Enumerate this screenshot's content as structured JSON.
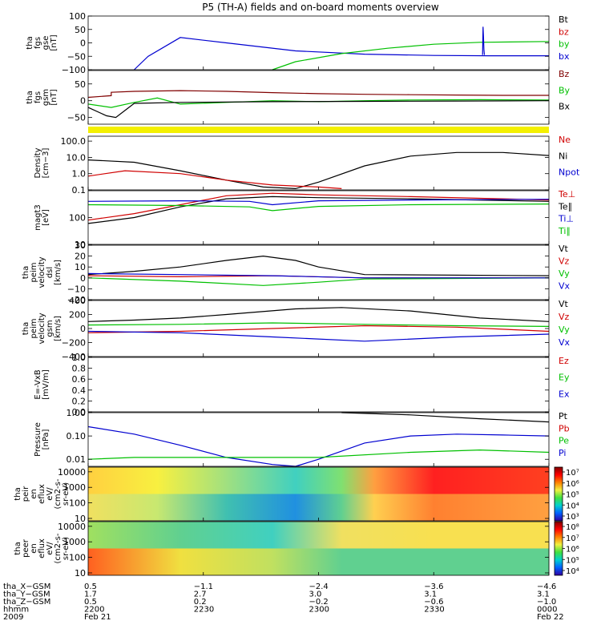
{
  "title": "P5 (TH-A) fields and on-board moments overview",
  "colors": {
    "black": "#000000",
    "red": "#d00000",
    "green": "#00c000",
    "blue": "#0000d0",
    "darkred": "#800000",
    "yellow": "#f4f000"
  },
  "chart_data": [
    {
      "type": "line",
      "id": "fgs_gse",
      "ylabel": [
        "tha",
        "fgs",
        "gse",
        "[nT]"
      ],
      "ylim": [
        -100,
        100
      ],
      "yticks": [
        "100",
        "50",
        "0",
        "−50",
        "−100"
      ],
      "yvalues": [
        100,
        50,
        0,
        -50,
        -100
      ],
      "legend": [
        {
          "label": "Bt",
          "color": "#000000"
        },
        {
          "label": "bz",
          "color": "#d00000"
        },
        {
          "label": "by",
          "color": "#00c000"
        },
        {
          "label": "bx",
          "color": "#0000d0"
        }
      ],
      "series": [
        {
          "name": "bx",
          "color": "#0000d0",
          "x": [
            0.1,
            0.13,
            0.2,
            0.3,
            0.45,
            0.6,
            0.75,
            0.87,
            0.9,
            1.0
          ],
          "y": [
            -100,
            -50,
            20,
            0,
            -30,
            -42,
            -47,
            -48,
            -48,
            -48
          ]
        },
        {
          "name": "by",
          "color": "#00c000",
          "x": [
            0.4,
            0.45,
            0.55,
            0.65,
            0.75,
            0.85,
            1.0
          ],
          "y": [
            -100,
            -70,
            -40,
            -20,
            -5,
            2,
            5
          ]
        },
        {
          "name": "spike",
          "color": "#0000d0",
          "x": [
            0.856,
            0.857,
            0.858,
            0.859,
            0.86
          ],
          "y": [
            -45,
            60,
            25,
            -25,
            -45
          ]
        }
      ]
    },
    {
      "type": "line",
      "id": "fgs_gsm",
      "ylabel": [
        "tha",
        "fgs",
        "gsm",
        "[nT]"
      ],
      "ylim": [
        -70,
        90
      ],
      "yticks": [
        "50",
        "0",
        "−50"
      ],
      "yvalues": [
        50,
        0,
        -50
      ],
      "legend": [
        {
          "label": "Bz",
          "color": "#800000"
        },
        {
          "label": "By",
          "color": "#00c000"
        },
        {
          "label": "Bx",
          "color": "#000000"
        }
      ],
      "series": [
        {
          "name": "Bz",
          "color": "#800000",
          "x": [
            0,
            0.05,
            0.05,
            0.1,
            0.2,
            0.3,
            0.4,
            0.5,
            0.6,
            0.7,
            0.8,
            0.9,
            1.0
          ],
          "y": [
            10,
            15,
            25,
            28,
            30,
            28,
            24,
            21,
            19,
            18,
            17,
            16,
            16
          ]
        },
        {
          "name": "By",
          "color": "#00c000",
          "x": [
            0,
            0.05,
            0.1,
            0.15,
            0.2,
            0.3,
            0.4,
            0.5,
            0.6,
            0.7,
            0.85,
            1.0
          ],
          "y": [
            -10,
            -20,
            -5,
            8,
            -10,
            -5,
            0,
            -3,
            0,
            2,
            3,
            2
          ]
        },
        {
          "name": "Bx",
          "color": "#000000",
          "x": [
            0,
            0.04,
            0.06,
            0.1,
            0.2,
            0.4,
            0.6,
            0.8,
            1.0
          ],
          "y": [
            -20,
            -45,
            -50,
            -8,
            -5,
            -3,
            -2,
            -1,
            0
          ]
        }
      ]
    },
    {
      "type": "line",
      "id": "density",
      "scale": "log",
      "ylabel": [
        "Density",
        "[cm−3]"
      ],
      "ylim": [
        0.1,
        200
      ],
      "yticks": [
        "100.0",
        "10.0",
        "1.0",
        "0.1"
      ],
      "yvalues": [
        100,
        10,
        1,
        0.1
      ],
      "legend": [
        {
          "label": "Ne",
          "color": "#d00000"
        },
        {
          "label": "Ni",
          "color": "#000000"
        },
        {
          "label": "Npot",
          "color": "#0000d0"
        }
      ],
      "series": [
        {
          "name": "Ni",
          "color": "#000000",
          "x": [
            0,
            0.1,
            0.2,
            0.3,
            0.38,
            0.45,
            0.5,
            0.6,
            0.7,
            0.8,
            0.9,
            1.0
          ],
          "y": [
            7,
            5,
            1.5,
            0.4,
            0.15,
            0.12,
            0.3,
            3,
            12,
            20,
            20,
            13
          ]
        },
        {
          "name": "Ne",
          "color": "#d00000",
          "x": [
            0,
            0.08,
            0.2,
            0.3,
            0.4,
            0.5,
            0.55
          ],
          "y": [
            0.7,
            1.5,
            1.0,
            0.4,
            0.2,
            0.15,
            0.12
          ]
        }
      ]
    },
    {
      "type": "line",
      "id": "temperature",
      "scale": "log",
      "ylabel": [
        "magt3",
        "[eV]"
      ],
      "ylim": [
        10,
        1000
      ],
      "yticks": [
        "100",
        "10"
      ],
      "yvalues": [
        100,
        10
      ],
      "legend": [
        {
          "label": "Te⊥",
          "color": "#d00000"
        },
        {
          "label": "Te∥",
          "color": "#000000"
        },
        {
          "label": "Ti⊥",
          "color": "#0000d0"
        },
        {
          "label": "Ti∥",
          "color": "#00c000"
        }
      ],
      "series": [
        {
          "name": "Te_perp",
          "color": "#d00000",
          "x": [
            0,
            0.1,
            0.2,
            0.3,
            0.4,
            0.5,
            0.7,
            1.0
          ],
          "y": [
            80,
            140,
            300,
            650,
            800,
            700,
            600,
            450
          ]
        },
        {
          "name": "Te_par",
          "color": "#000000",
          "x": [
            0,
            0.1,
            0.2,
            0.3,
            0.4,
            0.5,
            0.7,
            1.0
          ],
          "y": [
            60,
            100,
            250,
            500,
            600,
            550,
            500,
            400
          ]
        },
        {
          "name": "Ti_perp",
          "color": "#0000d0",
          "x": [
            0,
            0.2,
            0.35,
            0.4,
            0.5,
            0.7,
            1.0
          ],
          "y": [
            400,
            420,
            400,
            300,
            420,
            450,
            480
          ]
        },
        {
          "name": "Ti_par",
          "color": "#00c000",
          "x": [
            0,
            0.2,
            0.35,
            0.4,
            0.5,
            0.7,
            1.0
          ],
          "y": [
            300,
            280,
            250,
            180,
            260,
            300,
            320
          ]
        }
      ]
    },
    {
      "type": "line",
      "id": "peim_velocity_dsl",
      "ylabel": [
        "tha",
        "peim",
        "velocity",
        "dsl",
        "[km/s]"
      ],
      "ylim": [
        -20,
        30
      ],
      "yticks": [
        "30",
        "20",
        "10",
        "0",
        "−10",
        "−20"
      ],
      "yvalues": [
        30,
        20,
        10,
        0,
        -10,
        -20
      ],
      "legend": [
        {
          "label": "Vt",
          "color": "#000000"
        },
        {
          "label": "Vz",
          "color": "#d00000"
        },
        {
          "label": "Vy",
          "color": "#00c000"
        },
        {
          "label": "Vx",
          "color": "#0000d0"
        }
      ],
      "series": [
        {
          "name": "Vt",
          "color": "#000000",
          "x": [
            0,
            0.1,
            0.2,
            0.3,
            0.38,
            0.45,
            0.5,
            0.6,
            1.0
          ],
          "y": [
            3,
            6,
            10,
            16,
            20,
            16,
            10,
            3,
            2
          ]
        },
        {
          "name": "Vz",
          "color": "#d00000",
          "x": [
            0,
            0.2,
            0.4,
            0.6,
            1.0
          ],
          "y": [
            2,
            1,
            2,
            0,
            0
          ]
        },
        {
          "name": "Vy",
          "color": "#00c000",
          "x": [
            0,
            0.2,
            0.38,
            0.5,
            0.6,
            1.0
          ],
          "y": [
            0,
            -3,
            -7,
            -4,
            -1,
            0
          ]
        },
        {
          "name": "Vx",
          "color": "#0000d0",
          "x": [
            0,
            0.2,
            0.4,
            0.6,
            1.0
          ],
          "y": [
            4,
            3,
            2,
            0,
            0
          ]
        }
      ]
    },
    {
      "type": "line",
      "id": "peim_velocity_gsm",
      "ylabel": [
        "tha",
        "peim",
        "velocity",
        "gsm",
        "[km/s]"
      ],
      "ylim": [
        -400,
        400
      ],
      "yticks": [
        "400",
        "200",
        "0",
        "−200",
        "−400"
      ],
      "yvalues": [
        400,
        200,
        0,
        -200,
        -400
      ],
      "legend": [
        {
          "label": "Vt",
          "color": "#000000"
        },
        {
          "label": "Vz",
          "color": "#d00000"
        },
        {
          "label": "Vy",
          "color": "#00c000"
        },
        {
          "label": "Vx",
          "color": "#0000d0"
        }
      ],
      "series": [
        {
          "name": "Vt",
          "color": "#000000",
          "x": [
            0,
            0.1,
            0.2,
            0.3,
            0.45,
            0.55,
            0.7,
            0.85,
            1.0
          ],
          "y": [
            100,
            120,
            150,
            200,
            280,
            300,
            250,
            150,
            100
          ]
        },
        {
          "name": "Vy",
          "color": "#00c000",
          "x": [
            0,
            0.2,
            0.4,
            0.6,
            0.8,
            1.0
          ],
          "y": [
            50,
            60,
            80,
            60,
            40,
            30
          ]
        },
        {
          "name": "Vz",
          "color": "#d00000",
          "x": [
            0,
            0.2,
            0.4,
            0.6,
            0.8,
            1.0
          ],
          "y": [
            -60,
            -40,
            0,
            40,
            20,
            -40
          ]
        },
        {
          "name": "Vx",
          "color": "#0000d0",
          "x": [
            0,
            0.2,
            0.4,
            0.6,
            0.8,
            1.0
          ],
          "y": [
            -40,
            -60,
            -120,
            -180,
            -120,
            -80
          ]
        }
      ]
    },
    {
      "type": "line",
      "id": "efield",
      "ylabel": [
        "E=-VxB",
        "[mV/m]"
      ],
      "ylim": [
        0,
        1
      ],
      "yticks": [
        "1.0",
        "0.8",
        "0.6",
        "0.4",
        "0.2",
        "0.0"
      ],
      "yvalues": [
        1,
        0.8,
        0.6,
        0.4,
        0.2,
        0
      ],
      "legend": [
        {
          "label": "Ez",
          "color": "#d00000"
        },
        {
          "label": "Ey",
          "color": "#00c000"
        },
        {
          "label": "Ex",
          "color": "#0000d0"
        }
      ],
      "series": []
    },
    {
      "type": "line",
      "id": "pressure",
      "scale": "log",
      "ylabel": [
        "Pressure",
        "[nPa]"
      ],
      "ylim": [
        0.005,
        1.0
      ],
      "yticks": [
        "1.00",
        "0.10",
        "0.01"
      ],
      "yvalues": [
        1.0,
        0.1,
        0.01
      ],
      "legend": [
        {
          "label": "Pt",
          "color": "#000000"
        },
        {
          "label": "Pb",
          "color": "#d00000"
        },
        {
          "label": "Pe",
          "color": "#00c000"
        },
        {
          "label": "Pi",
          "color": "#0000d0"
        }
      ],
      "series": [
        {
          "name": "Pt",
          "color": "#000000",
          "x": [
            0.55,
            0.7,
            0.85,
            1.0
          ],
          "y": [
            1.0,
            0.8,
            0.55,
            0.4
          ]
        },
        {
          "name": "Pi",
          "color": "#0000d0",
          "x": [
            0,
            0.1,
            0.2,
            0.3,
            0.4,
            0.45,
            0.5,
            0.6,
            0.7,
            0.8,
            0.9,
            1.0
          ],
          "y": [
            0.25,
            0.12,
            0.04,
            0.012,
            0.006,
            0.005,
            0.01,
            0.05,
            0.1,
            0.12,
            0.11,
            0.1
          ]
        },
        {
          "name": "Pe",
          "color": "#00c000",
          "x": [
            0,
            0.1,
            0.3,
            0.5,
            0.7,
            0.85,
            1.0
          ],
          "y": [
            0.01,
            0.012,
            0.012,
            0.012,
            0.02,
            0.025,
            0.02
          ]
        }
      ]
    },
    {
      "type": "heatmap",
      "id": "peir_en_eflux",
      "ylabel": [
        "tha",
        "peir",
        "en",
        "eflux",
        "eV/",
        "(cm2-s-",
        "sr-eV)"
      ],
      "yticks": [
        "10000",
        "1000",
        "100",
        "10"
      ],
      "yvalues": [
        10000,
        1000,
        100,
        10
      ],
      "colorbar_ticks": [
        "10⁷",
        "10⁶",
        "10⁵",
        "10⁴",
        "10³"
      ],
      "columns": [
        {
          "x": 0.0,
          "top": "#ffd040",
          "bottom": "#f0e060"
        },
        {
          "x": 0.15,
          "top": "#f8f040",
          "bottom": "#c8e870"
        },
        {
          "x": 0.3,
          "top": "#a0e080",
          "bottom": "#40c0b0"
        },
        {
          "x": 0.45,
          "top": "#40d0c0",
          "bottom": "#2090e0"
        },
        {
          "x": 0.55,
          "top": "#80e070",
          "bottom": "#60d090"
        },
        {
          "x": 0.62,
          "top": "#ffa040",
          "bottom": "#ffd050"
        },
        {
          "x": 0.75,
          "top": "#ff2020",
          "bottom": "#ff8030"
        },
        {
          "x": 1.0,
          "top": "#ff4020",
          "bottom": "#ffa040"
        }
      ]
    },
    {
      "type": "heatmap",
      "id": "peer_en_eflux",
      "ylabel": [
        "tha",
        "peer",
        "en",
        "eflux",
        "eV/",
        "(cm2-s-",
        "sr-eV)"
      ],
      "yticks": [
        "10000",
        "1000",
        "100",
        "10"
      ],
      "yvalues": [
        10000,
        1000,
        100,
        10
      ],
      "colorbar_ticks": [
        "10⁸",
        "10⁷",
        "10⁶",
        "10⁵",
        "10⁴"
      ],
      "columns": [
        {
          "x": 0.0,
          "top": "#a0e060",
          "bottom": "#ff6020"
        },
        {
          "x": 0.2,
          "top": "#60d090",
          "bottom": "#f0e040"
        },
        {
          "x": 0.4,
          "top": "#40d0c0",
          "bottom": "#c0e060"
        },
        {
          "x": 0.55,
          "top": "#f0e060",
          "bottom": "#60d090"
        },
        {
          "x": 0.75,
          "top": "#f8e050",
          "bottom": "#60d090"
        },
        {
          "x": 1.0,
          "top": "#f8e050",
          "bottom": "#60d090"
        }
      ]
    }
  ],
  "x_axis": {
    "row_labels": [
      "tha_X−GSM",
      "tha_Y−GSM",
      "tha_Z−GSM",
      "hhmm",
      "2009"
    ],
    "columns": [
      {
        "x": 0.0,
        "vals": [
          "0.5",
          "1.7",
          "0.5",
          "2200",
          "Feb 21"
        ]
      },
      {
        "x": 0.25,
        "vals": [
          "−1.1",
          "2.7",
          "0.2",
          "2230",
          ""
        ]
      },
      {
        "x": 0.5,
        "vals": [
          "−2.4",
          "3.0",
          "−0.2",
          "2300",
          ""
        ]
      },
      {
        "x": 0.75,
        "vals": [
          "−3.6",
          "3.1",
          "−0.6",
          "2330",
          ""
        ]
      },
      {
        "x": 1.0,
        "vals": [
          "−4.6",
          "3.1",
          "−1.0",
          "0000",
          "Feb 22"
        ]
      }
    ]
  }
}
